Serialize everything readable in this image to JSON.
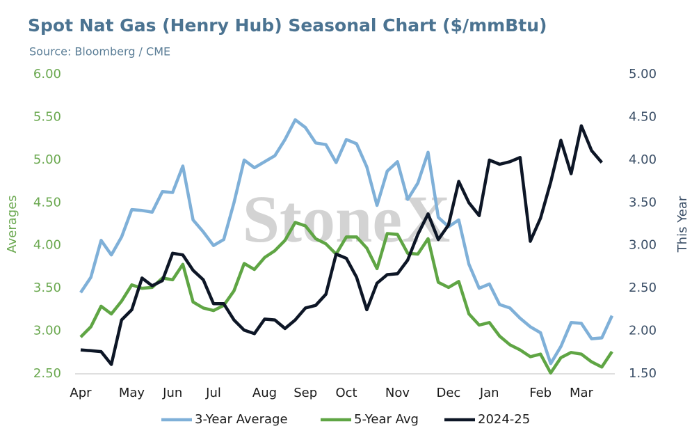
{
  "chart_data": {
    "type": "line",
    "title": "Spot Nat Gas (Henry Hub) Seasonal Chart ($/mmBtu)",
    "subtitle": "Source: Bloomberg / CME",
    "watermark": "StoneX",
    "y_label": "Averages",
    "y2_label": "This Year",
    "categories": [
      "Apr",
      null,
      null,
      null,
      null,
      "May",
      null,
      null,
      null,
      "Jun",
      null,
      null,
      null,
      "Jul",
      null,
      null,
      null,
      null,
      "Aug",
      null,
      null,
      null,
      "Sep",
      null,
      null,
      null,
      "Oct",
      null,
      null,
      null,
      null,
      "Nov",
      null,
      null,
      null,
      null,
      "Dec",
      null,
      null,
      null,
      "Jan",
      null,
      null,
      null,
      null,
      "Feb",
      null,
      null,
      null,
      "Mar",
      null,
      null,
      null
    ],
    "series": [
      {
        "name": "3-Year Average",
        "color": "#7fb0d8",
        "axis": "y",
        "values": [
          3.45,
          3.63,
          4.06,
          3.89,
          4.1,
          4.42,
          4.41,
          4.39,
          4.63,
          4.62,
          4.93,
          4.3,
          4.16,
          4.0,
          4.07,
          4.5,
          5.0,
          4.91,
          4.98,
          5.05,
          5.24,
          5.47,
          5.38,
          5.2,
          5.18,
          4.97,
          5.24,
          5.19,
          4.92,
          4.47,
          4.87,
          4.98,
          4.54,
          4.73,
          5.09,
          4.33,
          4.22,
          4.3,
          3.78,
          3.5,
          3.55,
          3.31,
          3.27,
          3.15,
          3.05,
          2.98,
          2.62,
          2.82,
          3.1,
          3.09,
          2.91,
          2.92,
          3.18
        ]
      },
      {
        "name": "5-Year Avg",
        "color": "#5fa544",
        "axis": "y",
        "values": [
          2.93,
          3.05,
          3.29,
          3.2,
          3.35,
          3.54,
          3.5,
          3.51,
          3.62,
          3.6,
          3.78,
          3.34,
          3.27,
          3.24,
          3.3,
          3.47,
          3.79,
          3.72,
          3.86,
          3.94,
          4.06,
          4.27,
          4.23,
          4.08,
          4.02,
          3.9,
          4.1,
          4.1,
          3.97,
          3.73,
          4.14,
          4.13,
          3.91,
          3.9,
          4.08,
          3.57,
          3.51,
          3.58,
          3.2,
          3.07,
          3.1,
          2.94,
          2.84,
          2.78,
          2.7,
          2.73,
          2.51,
          2.69,
          2.75,
          2.73,
          2.64,
          2.58,
          2.76
        ]
      },
      {
        "name": "2024-25",
        "color": "#0d1626",
        "axis": "y2",
        "values": [
          1.78,
          1.77,
          1.76,
          1.61,
          2.13,
          2.25,
          2.62,
          2.53,
          2.59,
          2.91,
          2.89,
          2.71,
          2.6,
          2.32,
          2.32,
          2.13,
          2.01,
          1.97,
          2.14,
          2.13,
          2.03,
          2.13,
          2.27,
          2.3,
          2.43,
          2.9,
          2.85,
          2.63,
          2.25,
          2.56,
          2.66,
          2.67,
          2.83,
          3.13,
          3.37,
          3.07,
          3.24,
          3.75,
          3.5,
          3.35,
          4.0,
          3.95,
          3.98,
          4.03,
          3.05,
          3.32,
          3.74,
          4.23,
          3.84,
          4.4,
          4.11,
          3.97,
          null
        ]
      }
    ],
    "ylim": [
      2.5,
      6.0
    ],
    "yticks": [
      {
        "value": 2.5,
        "label": "2.50"
      },
      {
        "value": 3,
        "label": "3.00"
      },
      {
        "value": 3.5,
        "label": "3.50"
      },
      {
        "value": 4,
        "label": "4.00"
      },
      {
        "value": 4.5,
        "label": "4.50"
      },
      {
        "value": 5,
        "label": "5.00"
      },
      {
        "value": 5.5,
        "label": "5.50"
      },
      {
        "value": 6,
        "label": "6.00"
      }
    ],
    "y2lim": [
      1.5,
      5.0
    ],
    "y2ticks": [
      {
        "value": 1.5,
        "label": "1.50"
      },
      {
        "value": 2,
        "label": "2.00"
      },
      {
        "value": 2.5,
        "label": "2.50"
      },
      {
        "value": 3,
        "label": "3.00"
      },
      {
        "value": 3.5,
        "label": "3.50"
      },
      {
        "value": 4,
        "label": "4.00"
      },
      {
        "value": 4.5,
        "label": "4.50"
      },
      {
        "value": 5,
        "label": "5.00"
      }
    ],
    "ytick_color": "#6aa84f",
    "y2tick_color": "#3a4e66",
    "grid": false,
    "legend": "bottom"
  }
}
